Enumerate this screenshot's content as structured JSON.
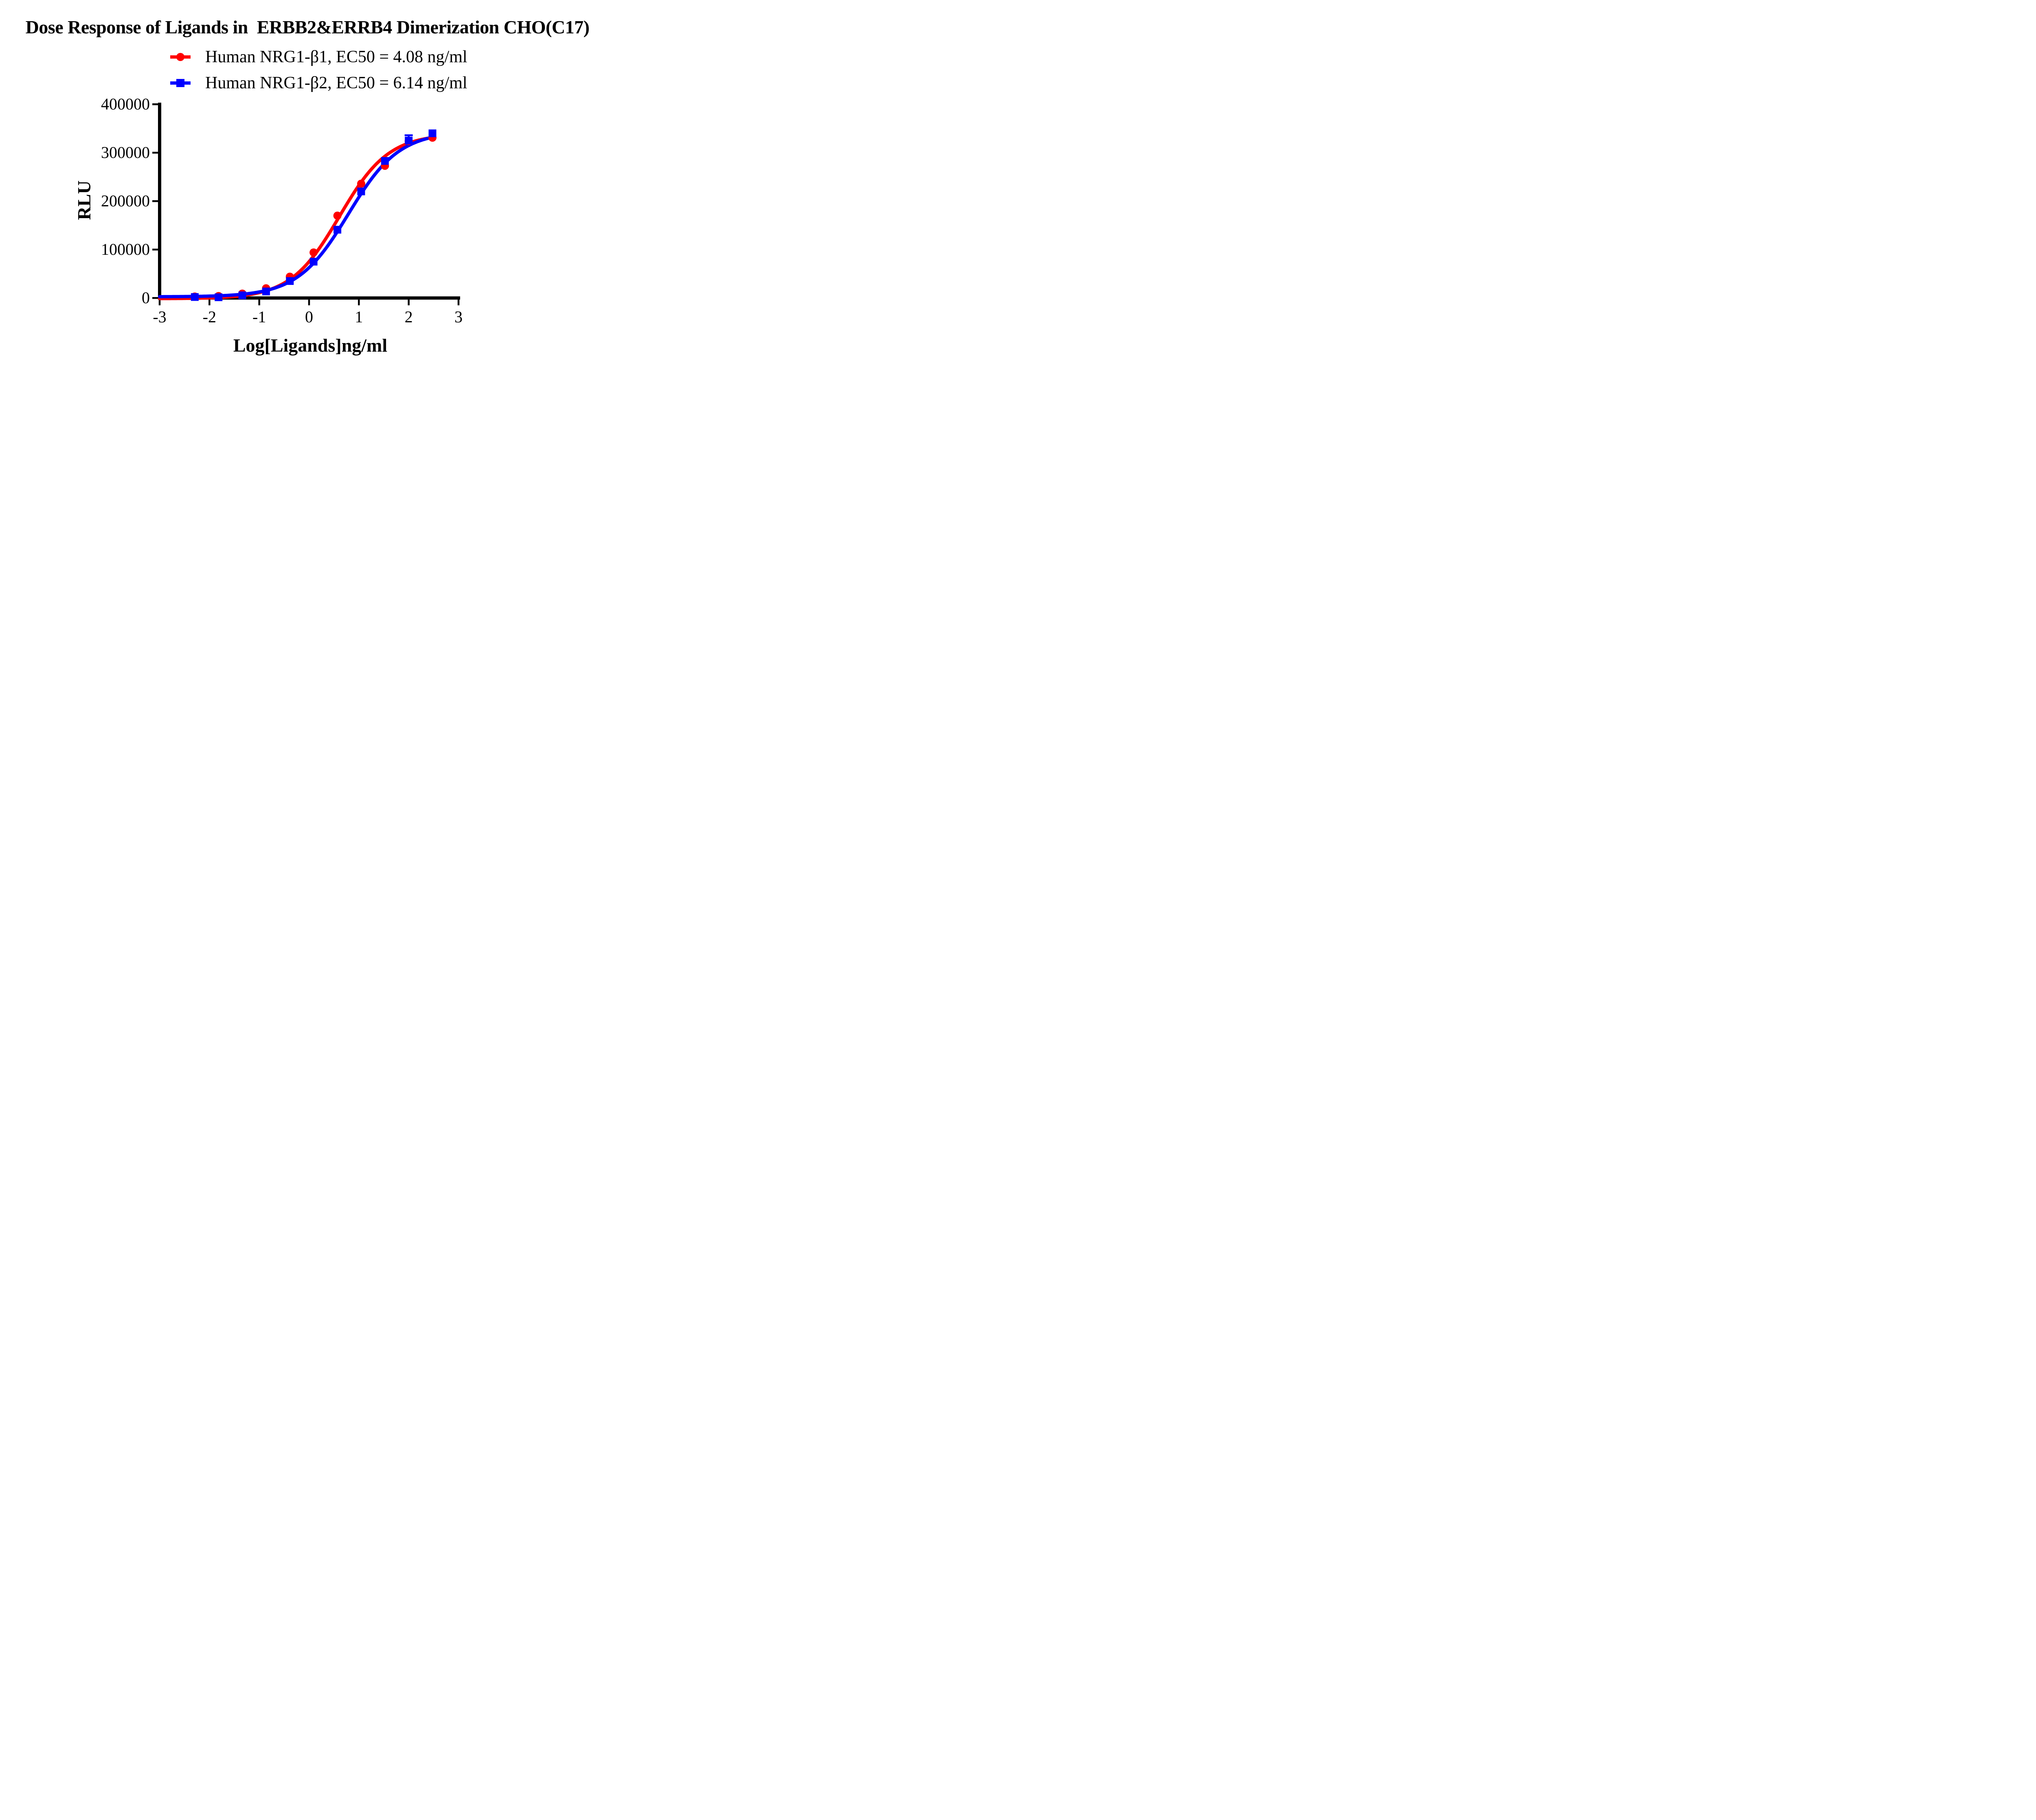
{
  "chart_data": {
    "type": "line",
    "title": "Dose Response of Ligands in  ERBB2&ERRB4 Dimerization CHO(C17)",
    "xlabel": "Log[Ligands]ng/ml",
    "ylabel": "RLU",
    "xlim": [
      -3,
      3
    ],
    "ylim": [
      0,
      400000
    ],
    "xticks": [
      -3,
      -2,
      -1,
      0,
      1,
      2,
      3
    ],
    "yticks": [
      0,
      100000,
      200000,
      300000,
      400000
    ],
    "grid": false,
    "legend_position": "top-center",
    "background_color": "#ffffff",
    "axis_color": "#000000",
    "x": [
      -2.294,
      -1.817,
      -1.34,
      -0.863,
      -0.386,
      0.091,
      0.569,
      1.046,
      1.523,
      2.0,
      2.477
    ],
    "series": [
      {
        "name": "Human NRG1-β1, EC50 = 4.08 ng/ml",
        "color": "#ff0000",
        "marker": "circle",
        "ec50_ng_ml": 4.08,
        "values": [
          3000,
          4000,
          9000,
          20000,
          44000,
          94000,
          170000,
          236000,
          273000,
          324000,
          331000
        ],
        "error_up": [
          0,
          0,
          0,
          0,
          0,
          0,
          0,
          0,
          0,
          0,
          0
        ],
        "fit": {
          "bottom": -1500,
          "top": 339000,
          "logec50": 0.611,
          "hill": 0.88
        }
      },
      {
        "name": "Human NRG1-β2, EC50 = 6.14 ng/ml",
        "color": "#0000ff",
        "marker": "square",
        "ec50_ng_ml": 6.14,
        "values": [
          2000,
          1500,
          5500,
          13500,
          35000,
          75000,
          141000,
          220000,
          283000,
          325000,
          340000
        ],
        "error_up": [
          0,
          0,
          0,
          0,
          0,
          0,
          0,
          0,
          0,
          11000,
          0
        ],
        "fit": {
          "bottom": 2500,
          "top": 344000,
          "logec50": 0.788,
          "hill": 0.85
        }
      }
    ]
  }
}
